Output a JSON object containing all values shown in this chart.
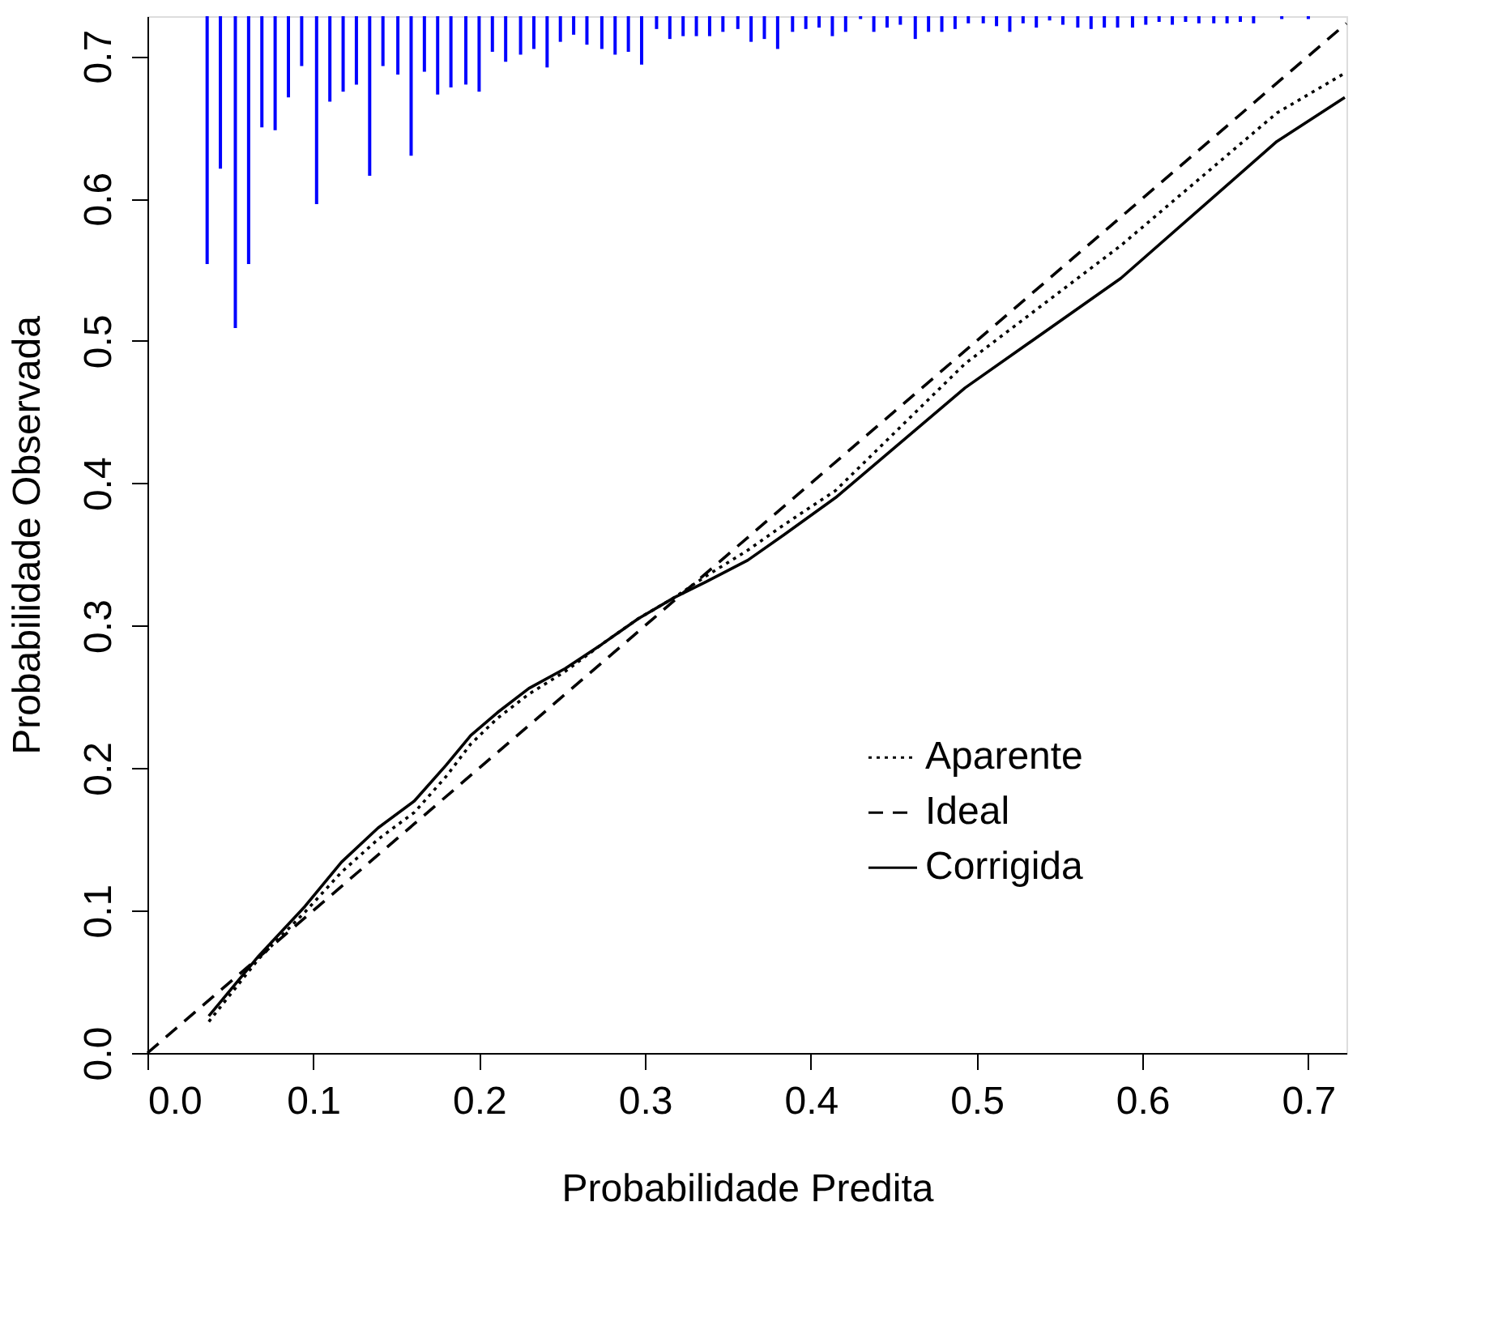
{
  "chart_data": {
    "type": "line",
    "xlabel": "Probabilidade Predita",
    "ylabel": "Probabilidade Observada",
    "xlim": [
      0,
      0.723
    ],
    "ylim": [
      0,
      0.728
    ],
    "xticks": [
      {
        "value": 0,
        "label": "0.0"
      },
      0.1,
      0.2,
      0.3,
      0.4,
      0.5,
      0.6,
      0.7
    ],
    "yticks": [
      {
        "value": 0,
        "label": "0.0"
      },
      0.1,
      0.2,
      0.3,
      0.4,
      0.5,
      0.6,
      0.7
    ],
    "grid": false,
    "legend": "right",
    "series": [
      {
        "name": "Aparente",
        "color": "#000000",
        "line_style": "dotted",
        "x": [
          0.037,
          0.067,
          0.095,
          0.117,
          0.139,
          0.161,
          0.18,
          0.195,
          0.211,
          0.23,
          0.252,
          0.274,
          0.296,
          0.318,
          0.337,
          0.362,
          0.384,
          0.415,
          0.493,
          0.587,
          0.681,
          0.722
        ],
        "values": [
          0.022,
          0.066,
          0.099,
          0.127,
          0.15,
          0.169,
          0.194,
          0.217,
          0.235,
          0.252,
          0.268,
          0.287,
          0.305,
          0.32,
          0.335,
          0.353,
          0.371,
          0.395,
          0.484,
          0.567,
          0.66,
          0.688
        ]
      },
      {
        "name": "Ideal",
        "color": "#000000",
        "line_style": "dashed",
        "x": [
          0,
          0.723
        ],
        "values": [
          0,
          0.723
        ]
      },
      {
        "name": "Corrigida",
        "color": "#000000",
        "line_style": "solid",
        "x": [
          0.037,
          0.067,
          0.095,
          0.117,
          0.139,
          0.161,
          0.18,
          0.195,
          0.211,
          0.23,
          0.252,
          0.274,
          0.296,
          0.318,
          0.337,
          0.362,
          0.384,
          0.415,
          0.493,
          0.587,
          0.681,
          0.722
        ],
        "values": [
          0.026,
          0.068,
          0.103,
          0.134,
          0.158,
          0.177,
          0.202,
          0.223,
          0.239,
          0.256,
          0.27,
          0.287,
          0.305,
          0.32,
          0.331,
          0.346,
          0.364,
          0.39,
          0.467,
          0.544,
          0.64,
          0.671
        ]
      },
      {
        "type": "bar",
        "color": "#0000ff",
        "x": [
          0.036,
          0.044,
          0.053,
          0.061,
          0.069,
          0.077,
          0.085,
          0.093,
          0.102,
          0.11,
          0.118,
          0.126,
          0.134,
          0.142,
          0.151,
          0.159,
          0.167,
          0.175,
          0.183,
          0.192,
          0.2,
          0.208,
          0.216,
          0.225,
          0.233,
          0.241,
          0.249,
          0.257,
          0.265,
          0.274,
          0.282,
          0.29,
          0.298,
          0.307,
          0.315,
          0.323,
          0.331,
          0.339,
          0.347,
          0.356,
          0.364,
          0.372,
          0.38,
          0.389,
          0.397,
          0.405,
          0.413,
          0.421,
          0.43,
          0.438,
          0.446,
          0.454,
          0.463,
          0.471,
          0.479,
          0.487,
          0.495,
          0.504,
          0.512,
          0.52,
          0.528,
          0.536,
          0.544,
          0.552,
          0.561,
          0.569,
          0.577,
          0.585,
          0.594,
          0.602,
          0.61,
          0.618,
          0.626,
          0.634,
          0.643,
          0.651,
          0.659,
          0.667,
          0.684,
          0.7
        ],
        "base": [
          0.728,
          0.728,
          0.728,
          0.728,
          0.728,
          0.728,
          0.728,
          0.728,
          0.728,
          0.728,
          0.728,
          0.728,
          0.728,
          0.728,
          0.728,
          0.728,
          0.728,
          0.728,
          0.728,
          0.728,
          0.728,
          0.728,
          0.728,
          0.728,
          0.728,
          0.728,
          0.728,
          0.728,
          0.728,
          0.728,
          0.728,
          0.728,
          0.728,
          0.728,
          0.728,
          0.728,
          0.728,
          0.728,
          0.728,
          0.728,
          0.728,
          0.728,
          0.728,
          0.728,
          0.728,
          0.728,
          0.728,
          0.728,
          0.728,
          0.728,
          0.728,
          0.728,
          0.728,
          0.728,
          0.728,
          0.728,
          0.728,
          0.728,
          0.728,
          0.728,
          0.728,
          0.728,
          0.728,
          0.728,
          0.728,
          0.728,
          0.728,
          0.728,
          0.728,
          0.728,
          0.728,
          0.728,
          0.728,
          0.728,
          0.728,
          0.728,
          0.728,
          0.728,
          0.728,
          0.728
        ],
        "values": [
          -0.174,
          -0.107,
          -0.219,
          -0.174,
          -0.078,
          -0.08,
          -0.057,
          -0.035,
          -0.132,
          -0.06,
          -0.053,
          -0.048,
          -0.112,
          -0.035,
          -0.041,
          -0.098,
          -0.039,
          -0.055,
          -0.05,
          -0.048,
          -0.053,
          -0.025,
          -0.032,
          -0.027,
          -0.023,
          -0.036,
          -0.018,
          -0.013,
          -0.02,
          -0.023,
          -0.027,
          -0.025,
          -0.034,
          -0.009,
          -0.016,
          -0.014,
          -0.014,
          -0.014,
          -0.011,
          -0.009,
          -0.018,
          -0.016,
          -0.023,
          -0.011,
          -0.009,
          -0.008,
          -0.014,
          -0.011,
          -0.002,
          -0.011,
          -0.008,
          -0.006,
          -0.016,
          -0.011,
          -0.011,
          -0.009,
          -0.005,
          -0.005,
          -0.007,
          -0.011,
          -0.005,
          -0.008,
          -0.003,
          -0.006,
          -0.008,
          -0.009,
          -0.008,
          -0.008,
          -0.008,
          -0.006,
          -0.004,
          -0.006,
          -0.004,
          -0.005,
          -0.005,
          -0.005,
          -0.004,
          -0.005,
          -0.002,
          -0.002
        ]
      }
    ]
  }
}
